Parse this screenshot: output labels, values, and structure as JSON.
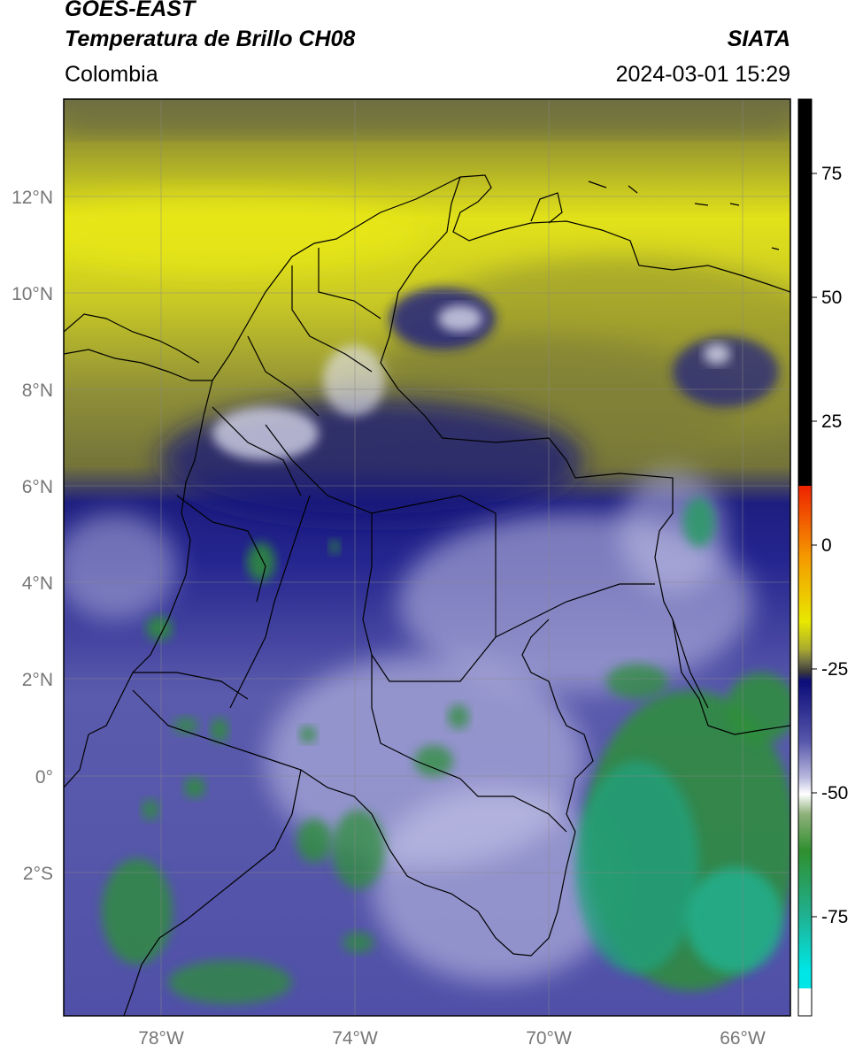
{
  "header": {
    "satellite": "GOES-EAST",
    "product": "Temperatura de Brillo CH08",
    "brand": "SIATA",
    "region": "Colombia",
    "datetime": "2024-03-01 15:29"
  },
  "map": {
    "lat_labels": [
      "12°N",
      "10°N",
      "8°N",
      "6°N",
      "4°N",
      "2°N",
      "0°",
      "2°S"
    ],
    "lon_labels": [
      "78°W",
      "74°W",
      "70°W",
      "66°W"
    ],
    "extent": {
      "lon_min": -80,
      "lon_max": -65,
      "lat_min": -5,
      "lat_max": 14
    }
  },
  "colorbar": {
    "tick_labels": [
      "75",
      "50",
      "25",
      "0",
      "-25",
      "-50",
      "-75"
    ],
    "tick_values": [
      75,
      50,
      25,
      0,
      -25,
      -50,
      -75
    ],
    "range": [
      -95,
      90
    ],
    "unit": "",
    "colors": {
      "black": "#000000",
      "red": "#ee2200",
      "orange": "#f59a00",
      "yellow": "#e8e800",
      "olive": "#8a8a30",
      "dark_blue": "#10108a",
      "periwinkle": "#6e6eb8",
      "white": "#ffffff",
      "green": "#2f8f2f",
      "teal": "#20b090",
      "cyan": "#00e5e5"
    }
  }
}
